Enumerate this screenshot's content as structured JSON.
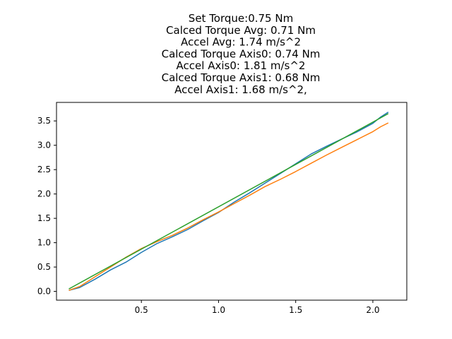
{
  "chart_data": {
    "type": "line",
    "title_lines": [
      "Set Torque:0.75 Nm",
      "Calced Torque Avg: 0.71 Nm",
      "Accel Avg: 1.74 m/s^2",
      "Calced Torque Axis0: 0.74 Nm",
      "Accel Axis0: 1.81 m/s^2",
      "Calced Torque Axis1: 0.68 Nm",
      "Accel Axis1: 1.68 m/s^2,"
    ],
    "xlabel": "",
    "ylabel": "",
    "xlim": [
      -0.05,
      2.22
    ],
    "ylim": [
      -0.18,
      3.88
    ],
    "xticks": [
      {
        "value": 0.5,
        "label": "0.5"
      },
      {
        "value": 1.0,
        "label": "1.0"
      },
      {
        "value": 1.5,
        "label": "1.5"
      },
      {
        "value": 2.0,
        "label": "2.0"
      }
    ],
    "yticks": [
      {
        "value": 0.0,
        "label": "0.0"
      },
      {
        "value": 0.5,
        "label": "0.5"
      },
      {
        "value": 1.0,
        "label": "1.0"
      },
      {
        "value": 1.5,
        "label": "1.5"
      },
      {
        "value": 2.0,
        "label": "2.0"
      },
      {
        "value": 2.5,
        "label": "2.5"
      },
      {
        "value": 3.0,
        "label": "3.0"
      },
      {
        "value": 3.5,
        "label": "3.5"
      }
    ],
    "grid": false,
    "legend": "none",
    "series": [
      {
        "color": "#1f77b4",
        "x": [
          0.03,
          0.1,
          0.2,
          0.3,
          0.4,
          0.5,
          0.6,
          0.7,
          0.8,
          0.9,
          1.0,
          1.1,
          1.2,
          1.3,
          1.4,
          1.5,
          1.6,
          1.7,
          1.8,
          1.9,
          2.0,
          2.05,
          2.1
        ],
        "y": [
          0.02,
          0.08,
          0.25,
          0.44,
          0.6,
          0.8,
          0.98,
          1.12,
          1.27,
          1.45,
          1.62,
          1.83,
          2.02,
          2.22,
          2.42,
          2.62,
          2.82,
          2.98,
          3.13,
          3.28,
          3.45,
          3.58,
          3.68
        ]
      },
      {
        "color": "#ff7f0e",
        "x": [
          0.03,
          0.1,
          0.2,
          0.3,
          0.4,
          0.5,
          0.6,
          0.7,
          0.8,
          0.9,
          1.0,
          1.1,
          1.2,
          1.3,
          1.4,
          1.5,
          1.6,
          1.7,
          1.8,
          1.9,
          2.0,
          2.05,
          2.1
        ],
        "y": [
          0.02,
          0.1,
          0.3,
          0.5,
          0.7,
          0.88,
          1.02,
          1.15,
          1.3,
          1.47,
          1.63,
          1.8,
          1.97,
          2.15,
          2.3,
          2.46,
          2.63,
          2.8,
          2.96,
          3.12,
          3.28,
          3.38,
          3.46
        ]
      },
      {
        "color": "#2ca02c",
        "x": [
          0.03,
          2.1
        ],
        "y": [
          0.05,
          3.65
        ]
      }
    ]
  }
}
